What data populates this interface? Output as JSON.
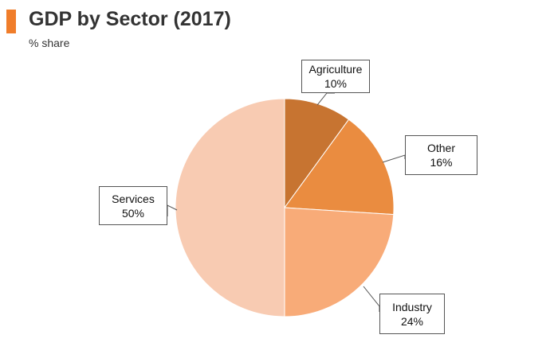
{
  "chart_data": {
    "type": "pie",
    "title": "GDP by Sector (2017)",
    "subtitle": "% share",
    "unit": "%",
    "slices": [
      {
        "label": "Agriculture",
        "value": 10,
        "display": "10%",
        "color": "#c77431"
      },
      {
        "label": "Other",
        "value": 16,
        "display": "16%",
        "color": "#ea8c40"
      },
      {
        "label": "Industry",
        "value": 24,
        "display": "24%",
        "color": "#f8ab78"
      },
      {
        "label": "Services",
        "value": 50,
        "display": "50%",
        "color": "#f8cbb2"
      }
    ],
    "start_angle": "12 o'clock",
    "direction": "clockwise",
    "legend": "none",
    "labels": "callouts"
  },
  "colors": {
    "accent": "#f07d2a",
    "title_text": "#333333"
  }
}
